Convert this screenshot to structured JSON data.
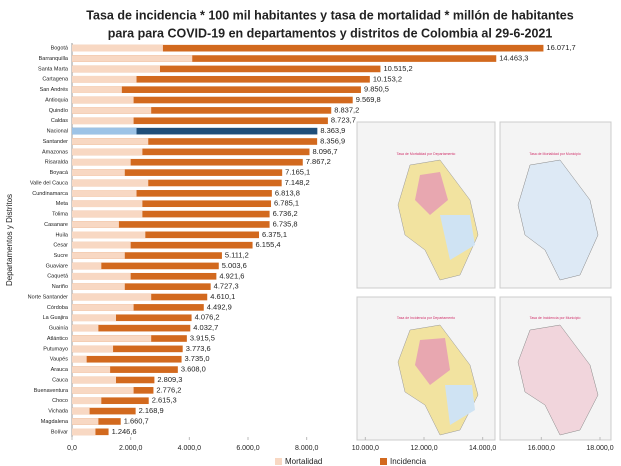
{
  "chart_data": {
    "type": "bar",
    "orientation": "horizontal",
    "title": "Tasa de incidencia  * 100 mil habitantes  y tasa de mortalidad  * millón de habitantes",
    "subtitle": "para  para COVID-19  en departamentos  y distritos de Colombia  al 29-6-2021",
    "y_label": "Departamentos y Distritos",
    "categories": [
      "Bogotá",
      "Barranquilla",
      "Santa Marta",
      "Cartagena",
      "San Andrés",
      "Antioquia",
      "Quindío",
      "Caldas",
      "Nacional",
      "Santander",
      "Amazonas",
      "Risaralda",
      "Boyacá",
      "Valle del Cauca",
      "Cundinamarca",
      "Meta",
      "Tolima",
      "Casanare",
      "Huila",
      "Cesar",
      "Sucre",
      "Guaviare",
      "Caquetá",
      "Nariño",
      "Norte Santander",
      "Córdoba",
      "La Guajira",
      "Guainía",
      "Atlántico",
      "Putumayo",
      "Vaupés",
      "Arauca",
      "Cauca",
      "Buenaventura",
      "Choco",
      "Vichada",
      "Magdalena",
      "Bolívar"
    ],
    "series": [
      {
        "name": "Mortalidad",
        "color": "#f8d8c3",
        "highlight_color": "#9dc3e6",
        "values": [
          3100,
          4100,
          3000,
          2200,
          1700,
          2100,
          2700,
          2100,
          2200,
          2600,
          2400,
          2000,
          1800,
          2600,
          2200,
          2400,
          2400,
          1600,
          2500,
          2000,
          1800,
          1000,
          2000,
          1800,
          2700,
          2100,
          1500,
          900,
          2700,
          1400,
          500,
          1300,
          1500,
          2100,
          1000,
          600,
          900,
          800
        ]
      },
      {
        "name": "Incidencia",
        "color": "#d2691e",
        "highlight_color": "#1f4e79",
        "values": [
          16071.7,
          14463.3,
          10515.2,
          10153.2,
          9850.5,
          9569.8,
          8837.2,
          8723.7,
          8363.9,
          8356.9,
          8096.7,
          7867.2,
          7165.1,
          7148.2,
          6813.8,
          6785.1,
          6736.2,
          6735.8,
          6375.1,
          6155.4,
          5111.2,
          5003.6,
          4921.6,
          4727.3,
          4610.1,
          4492.9,
          4076.2,
          4032.7,
          3915.5,
          3773.6,
          3735.0,
          3608.0,
          2809.3,
          2776.2,
          2615.3,
          2168.9,
          1660.7,
          1246.6
        ],
        "value_labels": [
          "16.071,7",
          "14.463,3",
          "10.515,2",
          "10.153,2",
          "9.850,5",
          "9.569,8",
          "8.837,2",
          "8.723,7",
          "8.363,9",
          "8.356,9",
          "8.096,7",
          "7.867,2",
          "7.165,1",
          "7.148,2",
          "6.813,8",
          "6.785,1",
          "6.736,2",
          "6.735,8",
          "6.375,1",
          "6.155,4",
          "5.111,2",
          "5.003,6",
          "4.921,6",
          "4.727,3",
          "4.610,1",
          "4.492,9",
          "4.076,2",
          "4.032,7",
          "3.915,5",
          "3.773,6",
          "3.735,0",
          "3.608,0",
          "2.809,3",
          "2.776,2",
          "2.615,3",
          "2.168,9",
          "1.660,7",
          "1.246,6"
        ]
      }
    ],
    "highlight_index": 8,
    "xlim": [
      0,
      18000
    ],
    "xticks": [
      {
        "value": 0,
        "label": "0,0"
      },
      {
        "value": 2000,
        "label": "2.000,0"
      },
      {
        "value": 4000,
        "label": "4.000,0"
      },
      {
        "value": 6000,
        "label": "6.000,0"
      },
      {
        "value": 8000,
        "label": "8.000,0"
      },
      {
        "value": 10000,
        "label": "10.000,0"
      },
      {
        "value": 12000,
        "label": "12.000,0"
      },
      {
        "value": 14000,
        "label": "14.000,0"
      },
      {
        "value": 16000,
        "label": "16.000,0"
      },
      {
        "value": 18000,
        "label": "18.000,0"
      }
    ],
    "grid": false,
    "legend": "bottom"
  },
  "insets": [
    "Tasa de Mortalidad por Departamento",
    "Tasa de Mortalidad por Municipio",
    "Tasa de Incidencia por Departamento",
    "Tasa de Incidencia por Municipio"
  ]
}
